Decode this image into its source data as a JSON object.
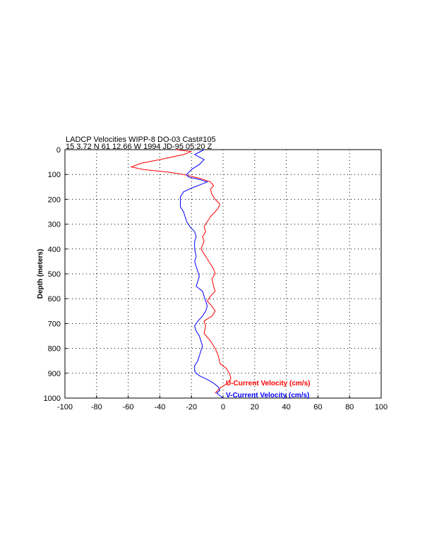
{
  "chart_data": {
    "type": "line",
    "title": "LADCP Velocities WIPP-8 DO-03 Cast#105",
    "subtitle": "15  3.72 N  61 12.66 W  1994 JD-95 05:20 Z",
    "xlabel": "",
    "ylabel": "Depth (meters)",
    "xlim": [
      -100,
      100
    ],
    "ylim": [
      0,
      1000
    ],
    "y_inverted": true,
    "grid": true,
    "xticks": [
      -100,
      -80,
      -60,
      -40,
      -20,
      0,
      20,
      40,
      60,
      80,
      100
    ],
    "yticks": [
      0,
      100,
      200,
      300,
      400,
      500,
      600,
      700,
      800,
      900,
      1000
    ],
    "legend_position": "bottom-right",
    "series": [
      {
        "name": "U-Current Velocity (cm/s)",
        "color": "#ff0000",
        "points": [
          [
            -30,
            0
          ],
          [
            -20,
            8
          ],
          [
            -25,
            20
          ],
          [
            -40,
            40
          ],
          [
            -52,
            55
          ],
          [
            -58,
            70
          ],
          [
            -50,
            80
          ],
          [
            -35,
            90
          ],
          [
            -25,
            100
          ],
          [
            -15,
            115
          ],
          [
            -8,
            130
          ],
          [
            -6,
            145
          ],
          [
            -8,
            160
          ],
          [
            -7,
            180
          ],
          [
            -5,
            200
          ],
          [
            -2,
            220
          ],
          [
            -3,
            235
          ],
          [
            -5,
            250
          ],
          [
            -8,
            270
          ],
          [
            -10,
            290
          ],
          [
            -12,
            310
          ],
          [
            -11,
            330
          ],
          [
            -13,
            350
          ],
          [
            -12,
            370
          ],
          [
            -14,
            400
          ],
          [
            -12,
            420
          ],
          [
            -10,
            440
          ],
          [
            -8,
            460
          ],
          [
            -6,
            480
          ],
          [
            -5,
            500
          ],
          [
            -7,
            520
          ],
          [
            -6,
            550
          ],
          [
            -5,
            570
          ],
          [
            -8,
            590
          ],
          [
            -10,
            610
          ],
          [
            -7,
            630
          ],
          [
            -5,
            650
          ],
          [
            -7,
            670
          ],
          [
            -12,
            690
          ],
          [
            -11,
            710
          ],
          [
            -12,
            740
          ],
          [
            -8,
            770
          ],
          [
            -5,
            800
          ],
          [
            -3,
            830
          ],
          [
            -2,
            860
          ],
          [
            2,
            880
          ],
          [
            4,
            900
          ],
          [
            5,
            920
          ],
          [
            3,
            940
          ],
          [
            -2,
            960
          ],
          [
            -5,
            980
          ]
        ]
      },
      {
        "name": "V-Current Velocity (cm/s)",
        "color": "#0000ff",
        "points": [
          [
            -12,
            0
          ],
          [
            -15,
            10
          ],
          [
            -18,
            20
          ],
          [
            -12,
            40
          ],
          [
            -15,
            60
          ],
          [
            -20,
            80
          ],
          [
            -23,
            100
          ],
          [
            -22,
            110
          ],
          [
            -15,
            120
          ],
          [
            -10,
            130
          ],
          [
            -14,
            140
          ],
          [
            -20,
            155
          ],
          [
            -25,
            170
          ],
          [
            -27,
            190
          ],
          [
            -27,
            210
          ],
          [
            -27,
            230
          ],
          [
            -25,
            250
          ],
          [
            -24,
            270
          ],
          [
            -23,
            290
          ],
          [
            -21,
            310
          ],
          [
            -18,
            330
          ],
          [
            -17,
            350
          ],
          [
            -18,
            370
          ],
          [
            -18,
            400
          ],
          [
            -17,
            430
          ],
          [
            -18,
            450
          ],
          [
            -17,
            470
          ],
          [
            -16,
            490
          ],
          [
            -15,
            510
          ],
          [
            -16,
            530
          ],
          [
            -17,
            550
          ],
          [
            -13,
            570
          ],
          [
            -12,
            590
          ],
          [
            -11,
            610
          ],
          [
            -10,
            630
          ],
          [
            -11,
            650
          ],
          [
            -13,
            670
          ],
          [
            -16,
            690
          ],
          [
            -18,
            710
          ],
          [
            -17,
            730
          ],
          [
            -15,
            750
          ],
          [
            -14,
            770
          ],
          [
            -13,
            790
          ],
          [
            -14,
            810
          ],
          [
            -15,
            830
          ],
          [
            -16,
            850
          ],
          [
            -18,
            870
          ],
          [
            -18,
            890
          ],
          [
            -17,
            900
          ],
          [
            -15,
            910
          ],
          [
            -10,
            925
          ],
          [
            -6,
            940
          ],
          [
            -3,
            955
          ],
          [
            -2,
            970
          ],
          [
            -4,
            980
          ],
          [
            -2,
            990
          ],
          [
            0,
            1000
          ]
        ]
      }
    ]
  }
}
